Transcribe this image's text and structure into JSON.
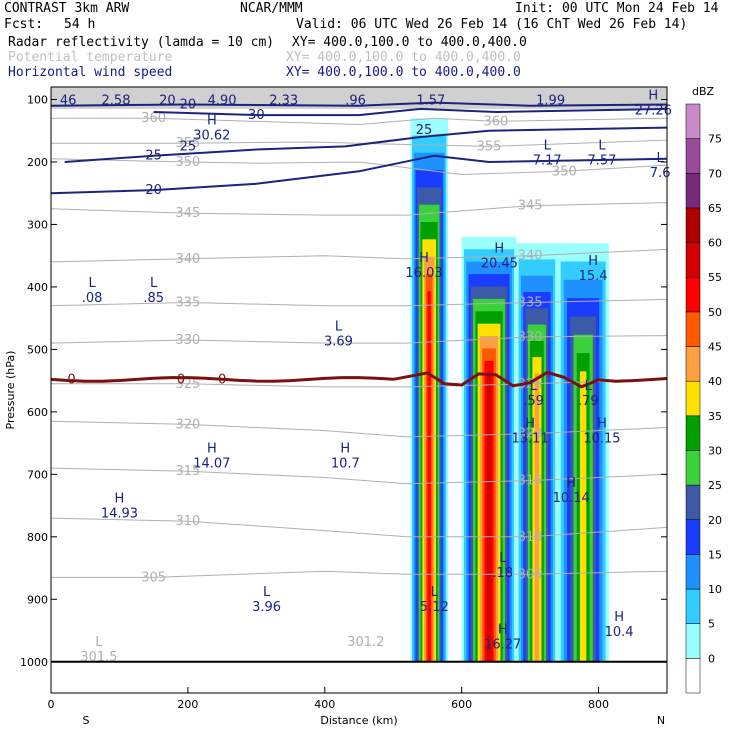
{
  "header": {
    "model": "CONTRAST  3km ARW",
    "center": "NCAR/MMM",
    "init": "Init: 00 UTC Mon 24 Feb 14",
    "fcst_label": "Fcst:",
    "fcst_value": "54 h",
    "valid": "Valid: 06 UTC Wed 26 Feb 14 (16 ChT Wed 26 Feb 14)",
    "field1": "Radar reflectivity (lamda = 10 cm)",
    "field1_xy": "XY= 400.0,100.0 to 400.0,400.0",
    "field2": "Potential temperature",
    "field2_xy": "XY= 400.0,100.0 to 400.0,400.0",
    "field3": "Horizontal wind speed",
    "field3_xy": "XY= 400.0,100.0 to 400.0,400.0"
  },
  "colors": {
    "theta": "#b0b0b0",
    "wind": "#1a237e",
    "freezing": "#7b1010",
    "cb": [
      "#ffffff",
      "#99ffff",
      "#33ccff",
      "#1e90ff",
      "#1a3cff",
      "#3c5aa8",
      "#3ad23a",
      "#00a000",
      "#ffe000",
      "#ffa040",
      "#ff5a00",
      "#ff0000",
      "#d40000",
      "#b00000",
      "#7a2a7a",
      "#9a4a9a",
      "#c88ac8"
    ]
  },
  "chart_data": {
    "type": "cross-section",
    "title": "Radar reflectivity (lamda = 10 cm), Potential temperature, Horizontal wind speed",
    "xlabel": "Distance (km)",
    "ylabel": "Pressure (hPa)",
    "xlim": [
      0,
      900
    ],
    "ylim": [
      1050,
      80
    ],
    "x_ticks": [
      0,
      200,
      400,
      600,
      800
    ],
    "y_ticks": [
      100,
      200,
      300,
      400,
      500,
      600,
      700,
      800,
      900,
      1000
    ],
    "x_end_labels": {
      "left": "S",
      "right": "N"
    },
    "colorbar": {
      "unit": "dBZ",
      "levels": [
        0,
        5,
        10,
        15,
        20,
        25,
        30,
        35,
        40,
        45,
        50,
        55,
        60,
        65,
        70,
        75
      ]
    },
    "theta_contours": [
      {
        "label": "360",
        "pts": [
          [
            0,
            130
          ],
          [
            150,
            130
          ],
          [
            300,
            135
          ],
          [
            450,
            140
          ],
          [
            560,
            130
          ],
          [
            650,
            135
          ],
          [
            900,
            130
          ]
        ]
      },
      {
        "label": "355",
        "pts": [
          [
            0,
            170
          ],
          [
            200,
            170
          ],
          [
            380,
            168
          ],
          [
            520,
            172
          ],
          [
            640,
            175
          ],
          [
            900,
            165
          ]
        ]
      },
      {
        "label": "350",
        "pts": [
          [
            0,
            195
          ],
          [
            200,
            200
          ],
          [
            300,
            202
          ],
          [
            450,
            200
          ],
          [
            600,
            220
          ],
          [
            750,
            215
          ],
          [
            900,
            205
          ]
        ]
      },
      {
        "label": "345",
        "pts": [
          [
            0,
            275
          ],
          [
            200,
            282
          ],
          [
            400,
            285
          ],
          [
            520,
            285
          ],
          [
            700,
            270
          ],
          [
            900,
            265
          ]
        ]
      },
      {
        "label": "340",
        "pts": [
          [
            0,
            360
          ],
          [
            200,
            355
          ],
          [
            400,
            350
          ],
          [
            520,
            355
          ],
          [
            700,
            350
          ],
          [
            900,
            340
          ]
        ]
      },
      {
        "label": "335",
        "pts": [
          [
            0,
            430
          ],
          [
            200,
            425
          ],
          [
            400,
            430
          ],
          [
            520,
            430
          ],
          [
            700,
            425
          ],
          [
            900,
            420
          ]
        ]
      },
      {
        "label": "330",
        "pts": [
          [
            0,
            490
          ],
          [
            200,
            485
          ],
          [
            400,
            490
          ],
          [
            520,
            490
          ],
          [
            700,
            480
          ],
          [
            900,
            478
          ]
        ]
      },
      {
        "label": "325",
        "pts": [
          [
            0,
            555
          ],
          [
            200,
            555
          ],
          [
            400,
            560
          ],
          [
            520,
            560
          ],
          [
            700,
            555
          ],
          [
            900,
            548
          ]
        ]
      },
      {
        "label": "320",
        "pts": [
          [
            0,
            615
          ],
          [
            200,
            620
          ],
          [
            400,
            630
          ],
          [
            520,
            640
          ],
          [
            700,
            635
          ],
          [
            900,
            625
          ]
        ]
      },
      {
        "label": "315",
        "pts": [
          [
            0,
            690
          ],
          [
            200,
            695
          ],
          [
            400,
            705
          ],
          [
            520,
            715
          ],
          [
            700,
            710
          ],
          [
            900,
            700
          ]
        ]
      },
      {
        "label": "310",
        "pts": [
          [
            0,
            770
          ],
          [
            200,
            775
          ],
          [
            400,
            790
          ],
          [
            520,
            800
          ],
          [
            700,
            800
          ],
          [
            900,
            785
          ]
        ]
      },
      {
        "label": "305",
        "pts": [
          [
            0,
            865
          ],
          [
            150,
            865
          ],
          [
            400,
            855
          ],
          [
            520,
            860
          ],
          [
            700,
            860
          ],
          [
            900,
            855
          ]
        ]
      }
    ],
    "wind_contours": [
      {
        "label": "20",
        "pts": [
          [
            0,
            250
          ],
          [
            150,
            245
          ],
          [
            300,
            235
          ],
          [
            450,
            215
          ],
          [
            560,
            190
          ],
          [
            640,
            200
          ],
          [
            900,
            195
          ]
        ]
      },
      {
        "label": "25",
        "pts": [
          [
            20,
            200
          ],
          [
            150,
            190
          ],
          [
            300,
            180
          ],
          [
            430,
            175
          ],
          [
            540,
            160
          ],
          [
            640,
            150
          ],
          [
            900,
            145
          ]
        ]
      },
      {
        "label": "30",
        "pts": [
          [
            150,
            120
          ],
          [
            300,
            125
          ],
          [
            450,
            125
          ],
          [
            540,
            115
          ],
          [
            650,
            120
          ],
          [
            900,
            115
          ]
        ]
      },
      {
        "label": "20",
        "pts": [
          [
            0,
            110
          ],
          [
            200,
            108
          ],
          [
            450,
            110
          ],
          [
            560,
            105
          ],
          [
            700,
            110
          ],
          [
            900,
            108
          ]
        ]
      }
    ],
    "freezing_level": {
      "label": "0",
      "pressure": 548
    },
    "highs_lows": [
      {
        "type": "L",
        "value": ".08",
        "x": 60,
        "p": 400
      },
      {
        "type": "L",
        "value": ".85",
        "x": 150,
        "p": 400
      },
      {
        "type": "L",
        "value": "3.69",
        "x": 420,
        "p": 470
      },
      {
        "type": "H",
        "value": "16.03",
        "x": 545,
        "p": 360
      },
      {
        "type": "H",
        "value": "20.45",
        "x": 655,
        "p": 345
      },
      {
        "type": "H",
        "value": "15.4",
        "x": 792,
        "p": 365
      },
      {
        "type": "L",
        "value": "7.17",
        "x": 725,
        "p": 180
      },
      {
        "type": "L",
        "value": "7.57",
        "x": 805,
        "p": 180
      },
      {
        "type": "L",
        "value": "7.6",
        "x": 890,
        "p": 200
      },
      {
        "type": "H",
        "value": "30.62",
        "x": 235,
        "p": 140
      },
      {
        "type": "H",
        "value": "27.26",
        "x": 880,
        "p": 100
      },
      {
        "type": "H",
        "value": "14.07",
        "x": 235,
        "p": 665
      },
      {
        "type": "H",
        "value": "10.7",
        "x": 430,
        "p": 665
      },
      {
        "type": "H",
        "value": "14.93",
        "x": 100,
        "p": 745
      },
      {
        "type": "L",
        "value": "3.96",
        "x": 315,
        "p": 895
      },
      {
        "type": "L",
        "value": "301.5",
        "x": 70,
        "p": 975
      },
      {
        "type": "L",
        "value": "5.12",
        "x": 560,
        "p": 895
      },
      {
        "type": "H",
        "value": "16.27",
        "x": 660,
        "p": 955
      },
      {
        "type": "H",
        "value": "10.4",
        "x": 830,
        "p": 935
      },
      {
        "type": "H",
        "value": "13.11",
        "x": 700,
        "p": 625
      },
      {
        "type": "H",
        "value": "10.15",
        "x": 805,
        "p": 625
      },
      {
        "type": "H",
        "value": "10.14",
        "x": 760,
        "p": 720
      },
      {
        "type": "L",
        "value": ".59",
        "x": 705,
        "p": 565
      },
      {
        "type": "L",
        "value": ".79",
        "x": 785,
        "p": 565
      },
      {
        "type": "L",
        "value": ".18",
        "x": 660,
        "p": 840
      }
    ],
    "top_band_values": [
      "46",
      "2.58",
      "20",
      "4.90",
      "2.33",
      ".96",
      "1.57",
      "1.99"
    ],
    "other_labels": [
      {
        "text": "301.2",
        "x": 460,
        "p": 975
      },
      {
        "text": "25",
        "x": 200,
        "p": 182
      },
      {
        "text": "25",
        "x": 545,
        "p": 155
      }
    ],
    "reflectivity_cells": [
      {
        "x": [
          525,
          580
        ],
        "top": 130,
        "bottom": 1000,
        "max_dbz": 50
      },
      {
        "x": [
          600,
          680
        ],
        "top": 320,
        "bottom": 1000,
        "max_dbz": 55
      },
      {
        "x": [
          680,
          740
        ],
        "top": 330,
        "bottom": 1000,
        "max_dbz": 40
      },
      {
        "x": [
          740,
          815
        ],
        "top": 330,
        "bottom": 1000,
        "max_dbz": 35
      }
    ]
  }
}
